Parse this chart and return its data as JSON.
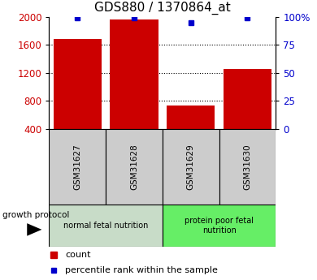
{
  "title": "GDS880 / 1370864_at",
  "samples": [
    "GSM31627",
    "GSM31628",
    "GSM31629",
    "GSM31630"
  ],
  "bar_values": [
    1680,
    1960,
    730,
    1260
  ],
  "percentile_values": [
    99,
    99,
    95,
    99
  ],
  "bar_color": "#cc0000",
  "dot_color": "#0000cc",
  "ylim_left": [
    400,
    2000
  ],
  "ylim_right": [
    0,
    100
  ],
  "yticks_left": [
    400,
    800,
    1200,
    1600,
    2000
  ],
  "yticks_right": [
    0,
    25,
    50,
    75,
    100
  ],
  "yticklabels_right": [
    "0",
    "25",
    "50",
    "75",
    "100%"
  ],
  "grid_values": [
    800,
    1200,
    1600
  ],
  "groups": [
    {
      "label": "normal fetal nutrition",
      "samples": [
        0,
        1
      ],
      "color": "#c8dcc8"
    },
    {
      "label": "protein poor fetal\nnutrition",
      "samples": [
        2,
        3
      ],
      "color": "#66ee66"
    }
  ],
  "sample_box_color": "#cccccc",
  "group_label": "growth protocol",
  "legend_count_label": "count",
  "legend_pct_label": "percentile rank within the sample",
  "tick_label_color_left": "#cc0000",
  "tick_label_color_right": "#0000cc",
  "background_color": "#ffffff"
}
